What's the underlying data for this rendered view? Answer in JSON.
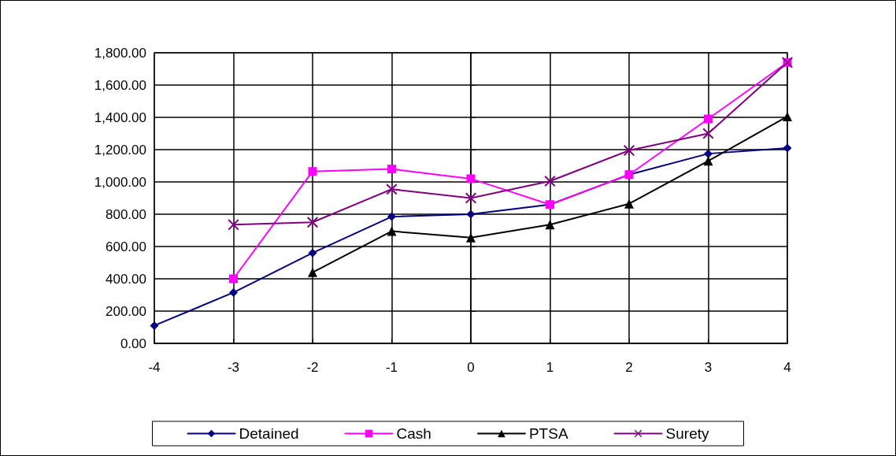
{
  "chart_data": {
    "type": "line",
    "x": [
      -4,
      -3,
      -2,
      -1,
      0,
      1,
      2,
      3,
      4
    ],
    "series": [
      {
        "name": "Detained",
        "color": "#000080",
        "marker": "diamond",
        "values": [
          110,
          315,
          560,
          785,
          800,
          860,
          1045,
          1175,
          1210
        ]
      },
      {
        "name": "Cash",
        "color": "#ff00ff",
        "marker": "square",
        "values": [
          null,
          400,
          1065,
          1080,
          1020,
          860,
          1045,
          1390,
          1740
        ]
      },
      {
        "name": "PTSA",
        "color": "#000000",
        "marker": "triangle",
        "values": [
          null,
          null,
          440,
          695,
          655,
          735,
          865,
          1130,
          1405
        ]
      },
      {
        "name": "Surety",
        "color": "#800080",
        "marker": "cross",
        "values": [
          null,
          735,
          750,
          955,
          900,
          1005,
          1195,
          1300,
          1740
        ]
      }
    ],
    "xlim": [
      -4,
      4
    ],
    "xticks": [
      -4,
      -3,
      -2,
      -1,
      0,
      1,
      2,
      3,
      4
    ],
    "ylim": [
      0,
      1800
    ],
    "yticks": [
      {
        "value": 0,
        "label": "0.00"
      },
      {
        "value": 200,
        "label": "200.00"
      },
      {
        "value": 400,
        "label": "400.00"
      },
      {
        "value": 600,
        "label": "600.00"
      },
      {
        "value": 800,
        "label": "800.00"
      },
      {
        "value": 1000,
        "label": "1,000.00"
      },
      {
        "value": 1200,
        "label": "1,200.00"
      },
      {
        "value": 1400,
        "label": "1,400.00"
      },
      {
        "value": 1600,
        "label": "1,600.00"
      },
      {
        "value": 1800,
        "label": "1,800.00"
      }
    ],
    "grid": true,
    "legend": "bottom",
    "line_style": "solid"
  }
}
